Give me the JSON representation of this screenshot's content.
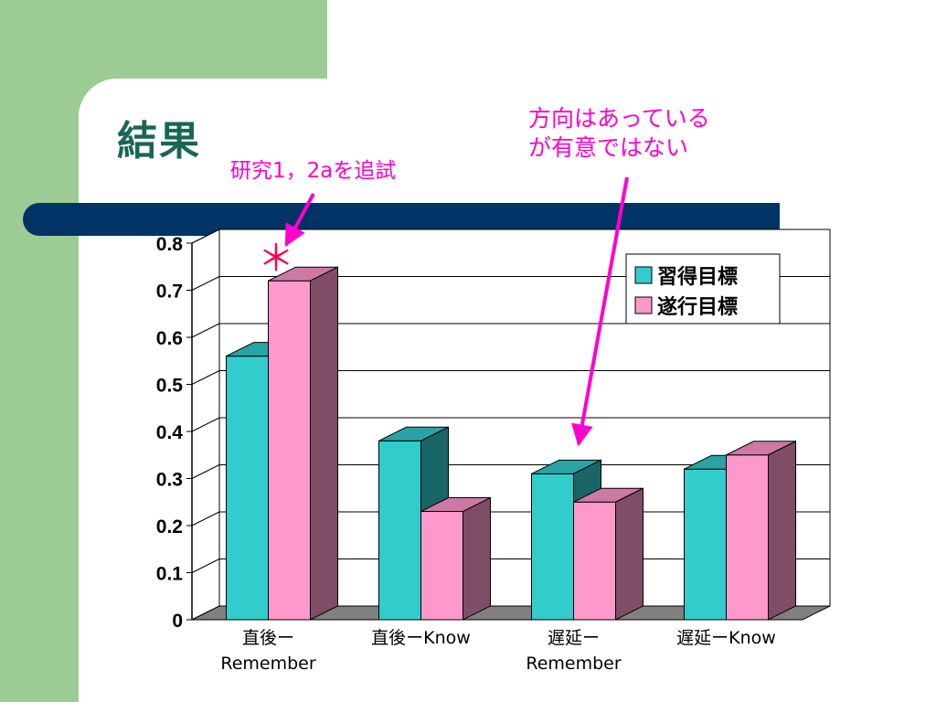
{
  "slide": {
    "title": "結果",
    "note_1": "研究1，2aを追試",
    "note_2": "方向はあっている\nが有意ではない",
    "significance_mark": "＊"
  },
  "colors": {
    "background_green": "#9ccc94",
    "title_bar": "#003366",
    "title_text": "#1a6655",
    "annotation": "#ff00cc",
    "series_1": "#33cccc",
    "series_2": "#ff99cc"
  },
  "chart_data": {
    "type": "bar",
    "style": "3d-clustered",
    "categories": [
      "直後ー\nRemember",
      "直後ーKnow",
      "遅延ー\nRemember",
      "遅延ーKnow"
    ],
    "series": [
      {
        "name": "習得目標",
        "values": [
          0.56,
          0.38,
          0.31,
          0.32
        ]
      },
      {
        "name": "遂行目標",
        "values": [
          0.72,
          0.23,
          0.25,
          0.35
        ]
      }
    ],
    "ylim": [
      0,
      0.8
    ],
    "yticks": [
      "0",
      "0.1",
      "0.2",
      "0.3",
      "0.4",
      "0.5",
      "0.6",
      "0.7",
      "0.8"
    ],
    "grid": true,
    "legend_position": "top-right"
  }
}
